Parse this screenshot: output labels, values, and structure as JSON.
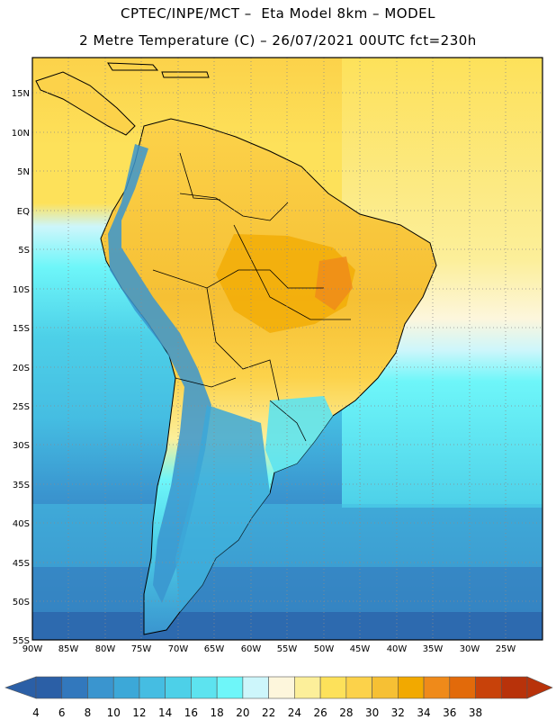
{
  "header": {
    "line1": "CPTEC/INPE/MCT –  Eta Model 8km – MODEL",
    "line2": "2 Metre Temperature (C) – 26/07/2021 00UTC fct=230h"
  },
  "map": {
    "region": "South America",
    "lon_range": [
      -90,
      -20
    ],
    "lat_range": [
      -55,
      20
    ],
    "lon_ticks": [
      "90W",
      "85W",
      "80W",
      "75W",
      "70W",
      "65W",
      "60W",
      "55W",
      "50W",
      "45W",
      "40W",
      "35W",
      "30W",
      "25W"
    ],
    "lat_ticks": [
      "15N",
      "10N",
      "5N",
      "EQ",
      "5S",
      "10S",
      "15S",
      "20S",
      "25S",
      "30S",
      "35S",
      "40S",
      "45S",
      "50S",
      "55S"
    ],
    "grid": "dotted",
    "ocean_colors": {
      "tropical_north": "#fde15a",
      "equatorial_pacific": "#cdf6fb",
      "south_atlantic_warm": "#fef6dc",
      "mid_latitude": "#46d7e8",
      "south_cold": "#3a9ed3",
      "far_south": "#2a6ab0"
    }
  },
  "colorbar": {
    "labels": [
      "4",
      "6",
      "8",
      "10",
      "12",
      "14",
      "16",
      "18",
      "20",
      "22",
      "24",
      "26",
      "28",
      "30",
      "32",
      "34",
      "36",
      "38"
    ],
    "colors": [
      "#2b5fa6",
      "#3278bd",
      "#3a95cf",
      "#3ca8d8",
      "#45bde2",
      "#4dd0e8",
      "#5de3ef",
      "#6ef6f9",
      "#cdf6fb",
      "#fdf6dc",
      "#fcef9a",
      "#fde15a",
      "#fcd24a",
      "#f6c034",
      "#f2a900",
      "#ef8a1a",
      "#e26a0a",
      "#c8420a",
      "#b8320a"
    ]
  }
}
